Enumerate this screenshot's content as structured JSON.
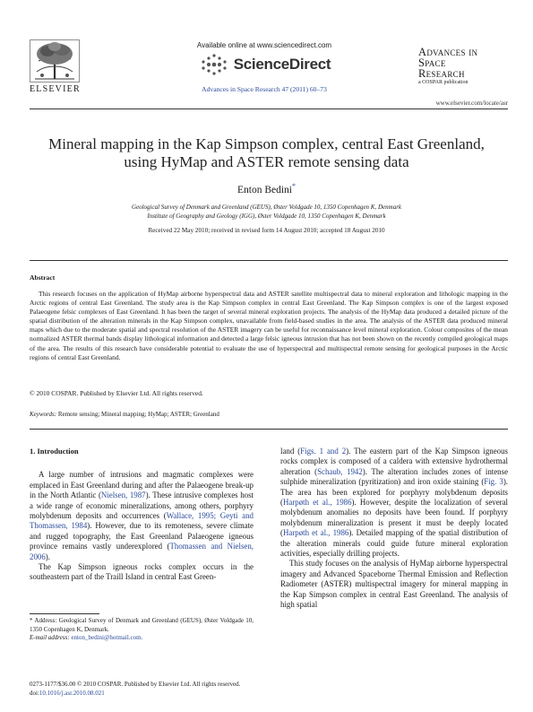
{
  "header": {
    "publisher": "ELSEVIER",
    "available_online": "Available online at www.sciencedirect.com",
    "sciencedirect": "ScienceDirect",
    "citation": "Advances in Space Research 47 (2011) 60–73",
    "journal_title_lines": [
      "Advances in",
      "Space",
      "Research"
    ],
    "journal_sub": "a COSPAR publication",
    "journal_url": "www.elsevier.com/locate/asr"
  },
  "title": "Mineral mapping in the Kap Simpson complex, central East Greenland, using HyMap and ASTER remote sensing data",
  "author": {
    "name": "Enton Bedini",
    "mark": "*"
  },
  "affiliations": [
    "Geological Survey of Denmark and Greenland (GEUS), Øster Voldgade 10, 1350 Copenhagen K, Denmark",
    "Institute of Geography and Geology (IGG), Øster Voldgade 10, 1350 Copenhagen K, Denmark"
  ],
  "received": "Received 22 May 2010; received in revised form 14 August 2010; accepted 18 August 2010",
  "abstract": {
    "heading": "Abstract",
    "text": "This research focuses on the application of HyMap airborne hyperspectral data and ASTER satellite multispectral data to mineral exploration and lithologic mapping in the Arctic regions of central East Greenland. The study area is the Kap Simpson complex in central East Greenland. The Kap Simpson complex is one of the largest exposed Palaeogene felsic complexes of East Greenland. It has been the target of several mineral exploration projects. The analysis of the HyMap data produced a detailed picture of the spatial distribution of the alteration minerals in the Kap Simpson complex, unavailable from field-based studies in the area. The analysis of the ASTER data produced mineral maps which due to the moderate spatial and spectral resolution of the ASTER imagery can be useful for reconnaissance level mineral exploration. Colour composites of the mean normalized ASTER thermal bands display lithological information and detected a large felsic igneous intrusion that has not been shown on the recently compiled geological maps of the area. The results of this research have considerable potential to evaluate the use of hyperspectral and multispectral remote sensing for geological purposes in the Arctic regions of central East Greenland.",
    "copyright": "© 2010 COSPAR. Published by Elsevier Ltd. All rights reserved.",
    "keywords_label": "Keywords:",
    "keywords": "Remote sensing; Mineral mapping; HyMap; ASTER; Greenland"
  },
  "intro": {
    "heading": "1. Introduction",
    "left_p1_a": "A large number of intrusions and magmatic complexes were emplaced in East Greenland during and after the Palaeogene break-up in the North Atlantic (",
    "left_p1_ref1": "Nielsen, 1987",
    "left_p1_b": "). These intrusive complexes host a wide range of economic mineralizations, among others, porphyry molybdenum deposits and occurrences (",
    "left_p1_ref2": "Wallace, 1995; Geyti and Thomassen, 1984",
    "left_p1_c": "). However, due to its remoteness, severe climate and rugged topography, the East Greenland Palaeogene igneous province remains vastly underexplored (",
    "left_p1_ref3": "Thomassen and Nielsen, 2006",
    "left_p1_d": ").",
    "left_p2": "The Kap Simpson igneous rocks complex occurs in the southeastern part of the Traill Island in central East Green-",
    "right_p1_a": "land (",
    "right_p1_ref1": "Figs. 1 and 2",
    "right_p1_b": "). The eastern part of the Kap Simpson igneous rocks complex is composed of a caldera with extensive hydrothermal alteration (",
    "right_p1_ref2": "Schaub, 1942",
    "right_p1_c": "). The alteration includes zones of intense sulphide mineralization (pyritization) and iron oxide staining (",
    "right_p1_ref3": "Fig. 3",
    "right_p1_d": "). The area has been explored for porphyry molybdenum deposits (",
    "right_p1_ref4": "Harpøth et al., 1986",
    "right_p1_e": "). However, despite the localization of several molybdenum anomalies no deposits have been found. If porphyry molybdenum mineralization is present it must be deeply located (",
    "right_p1_ref5": "Harpøth et al., 1986",
    "right_p1_f": "). Detailed mapping of the spatial distribution of the alteration minerals could guide future mineral exploration activities, especially drilling projects.",
    "right_p2": "This study focuses on the analysis of HyMap airborne hyperspectral imagery and Advanced Spaceborne Thermal Emission and Reflection Radiometer (ASTER) multispectral imagery for mineral mapping in the Kap Simpson complex in central East Greenland. The analysis of high spatial"
  },
  "footnote": {
    "address": "* Address: Geological Survey of Denmark and Greenland (GEUS), Øster Voldgade 10, 1350 Copenhagen K, Denmark.",
    "email_label": "E-mail address:",
    "email": "enton_bedini@hotmail.com."
  },
  "bottom": {
    "issn": "0273-1177/$36.00 © 2010 COSPAR. Published by Elsevier Ltd. All rights reserved.",
    "doi_label": "doi:",
    "doi": "10.1016/j.asr.2010.08.021"
  }
}
